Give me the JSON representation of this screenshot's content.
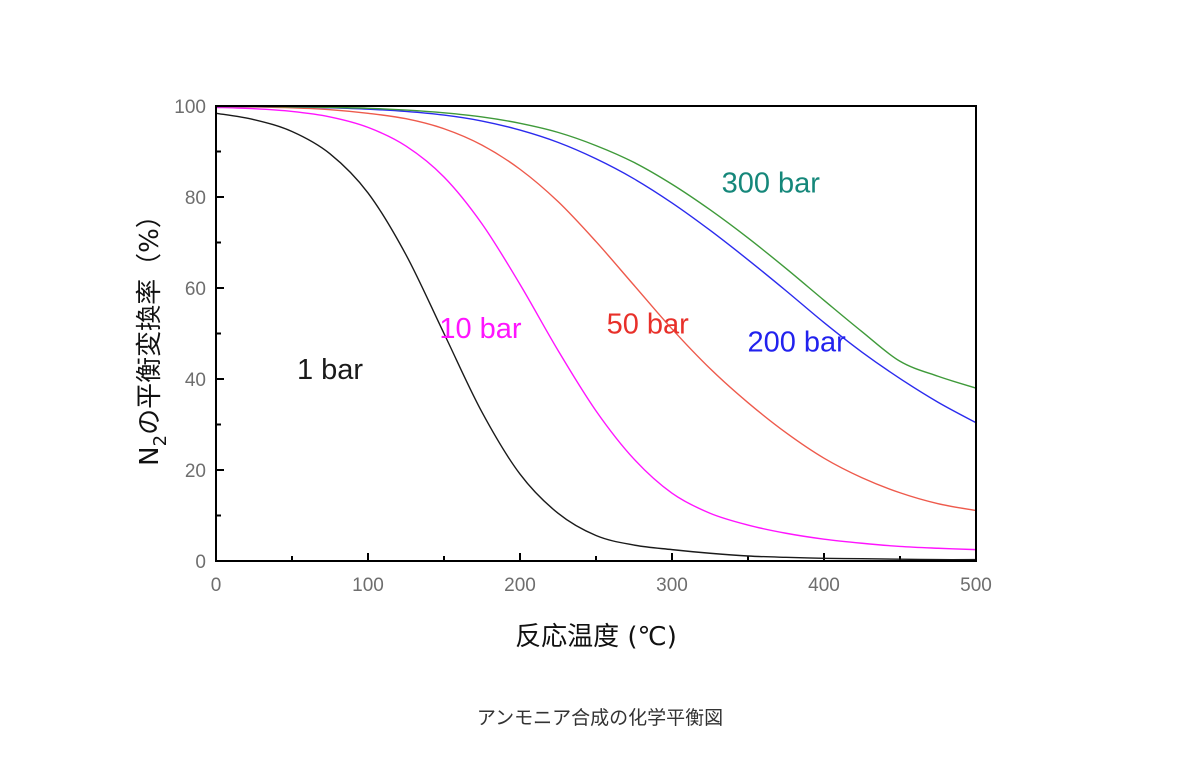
{
  "caption": "アンモニア合成の化学平衡図",
  "chart_data": {
    "type": "line",
    "xlabel": "反応温度 (℃)",
    "ylabel": {
      "prefix": "N",
      "subscript": "2",
      "suffix": "の平衡変換率（%）"
    },
    "xlim": [
      0,
      500
    ],
    "ylim": [
      0,
      100
    ],
    "xticks": [
      0,
      100,
      200,
      300,
      400,
      500
    ],
    "yticks": [
      0,
      20,
      40,
      60,
      80,
      100
    ],
    "grid": false,
    "series": [
      {
        "name": "1 bar",
        "color": "#1a1a1a",
        "x": [
          0,
          25,
          50,
          75,
          100,
          125,
          150,
          175,
          200,
          225,
          250,
          275,
          300,
          325,
          350,
          375,
          400,
          425,
          450,
          475,
          500
        ],
        "y": [
          98.4,
          97,
          94.4,
          89.5,
          80.9,
          67.3,
          50,
          32.7,
          19.1,
          10.5,
          5.6,
          3.5,
          2.5,
          1.7,
          1.1,
          0.8,
          0.6,
          0.5,
          0.4,
          0.3,
          0.3
        ]
      },
      {
        "name": "10 bar",
        "color": "#ff14ff",
        "x": [
          0,
          25,
          50,
          75,
          100,
          125,
          150,
          175,
          200,
          225,
          250,
          275,
          300,
          325,
          350,
          375,
          400,
          425,
          450,
          475,
          500
        ],
        "y": [
          99.7,
          99.4,
          98.8,
          97.6,
          95.3,
          91.2,
          84.4,
          74.1,
          60.8,
          46.3,
          33,
          22.4,
          14.9,
          10.5,
          7.9,
          6.1,
          4.8,
          3.9,
          3.2,
          2.8,
          2.5
        ]
      },
      {
        "name": "50 bar",
        "color": "#ee5a4c",
        "x": [
          0,
          25,
          50,
          75,
          100,
          125,
          150,
          175,
          200,
          225,
          250,
          275,
          300,
          325,
          350,
          375,
          400,
          425,
          450,
          475,
          500
        ],
        "y": [
          99.9,
          99.8,
          99.6,
          99.2,
          98.4,
          97.2,
          95,
          91.4,
          86.1,
          79,
          70.2,
          60.6,
          51,
          42.3,
          34.8,
          28.2,
          22.6,
          18.3,
          15,
          12.6,
          11.1
        ]
      },
      {
        "name": "200 bar",
        "color": "#2b2bee",
        "x": [
          0,
          25,
          50,
          75,
          100,
          125,
          150,
          175,
          200,
          225,
          250,
          275,
          300,
          325,
          350,
          375,
          400,
          425,
          450,
          475,
          500
        ],
        "y": [
          99.9,
          99.9,
          99.8,
          99.6,
          99.3,
          98.8,
          98,
          96.7,
          94.7,
          92,
          88.4,
          84,
          78.7,
          72.7,
          66.2,
          59.4,
          52.4,
          45.9,
          40.1,
          34.9,
          30.4
        ]
      },
      {
        "name": "300 bar",
        "color": "#3f9a3a",
        "x": [
          0,
          25,
          50,
          75,
          100,
          125,
          150,
          175,
          200,
          225,
          250,
          275,
          300,
          325,
          350,
          375,
          400,
          425,
          450,
          475,
          500
        ],
        "y": [
          99.9,
          99.9,
          99.8,
          99.7,
          99.5,
          99.1,
          98.5,
          97.6,
          96.2,
          94.2,
          91.3,
          87.6,
          82.8,
          77.2,
          71,
          64.3,
          57.3,
          50.4,
          43.9,
          40.6,
          38
        ]
      }
    ],
    "labels": [
      {
        "text": "1 bar",
        "color": "#1a1a1a",
        "x": 75,
        "y": 40
      },
      {
        "text": "10 bar",
        "color": "#ff14ff",
        "x": 174,
        "y": 49
      },
      {
        "text": "50 bar",
        "color": "#e8302a",
        "x": 284,
        "y": 50
      },
      {
        "text": "200 bar",
        "color": "#2222ee",
        "x": 382,
        "y": 46
      },
      {
        "text": "300 bar",
        "color": "#15877a",
        "x": 365,
        "y": 81
      }
    ]
  }
}
